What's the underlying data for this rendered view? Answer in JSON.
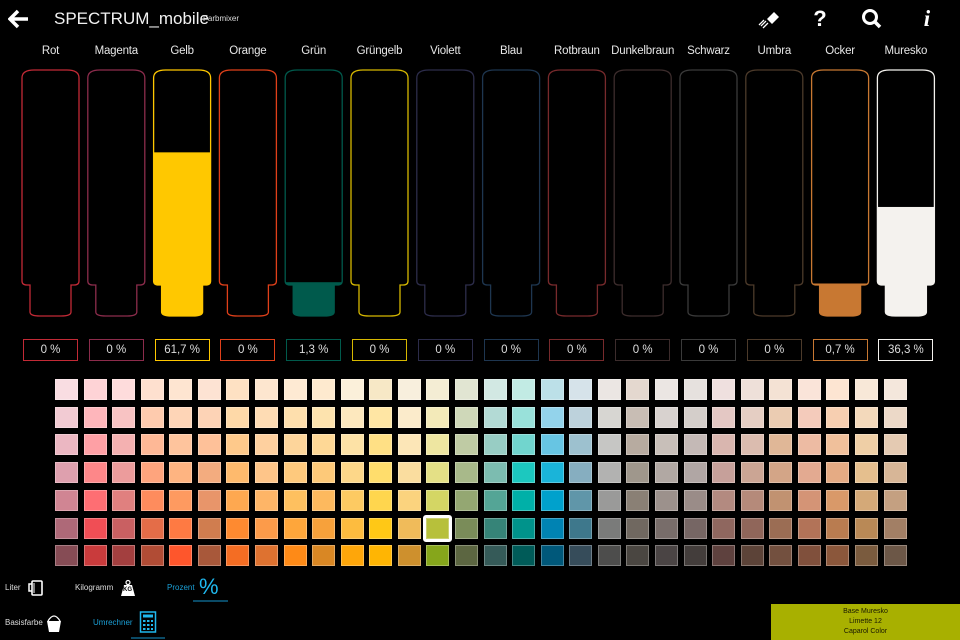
{
  "header": {
    "title": "SPECTRUM_mobile",
    "subtitle": "Farbmixer",
    "icons": [
      "back-arrow-icon",
      "eraser-icon",
      "help-icon",
      "search-icon",
      "info-icon"
    ]
  },
  "tubes": [
    {
      "name": "Rot",
      "percent": 0,
      "value": "0 %",
      "color": "#c32a36"
    },
    {
      "name": "Magenta",
      "percent": 0,
      "value": "0 %",
      "color": "#8c2c4c"
    },
    {
      "name": "Gelb",
      "percent": 61.7,
      "value": "61,7 %",
      "color": "#ffc800"
    },
    {
      "name": "Orange",
      "percent": 0,
      "value": "0 %",
      "color": "#e0401a"
    },
    {
      "name": "Grün",
      "percent": 1.3,
      "value": "1,3 %",
      "color": "#005a4c"
    },
    {
      "name": "Grüngelb",
      "percent": 0,
      "value": "0 %",
      "color": "#d6b800"
    },
    {
      "name": "Violett",
      "percent": 0,
      "value": "0 %",
      "color": "#2c2c4a"
    },
    {
      "name": "Blau",
      "percent": 0,
      "value": "0 %",
      "color": "#1e3650"
    },
    {
      "name": "Rotbraun",
      "percent": 0,
      "value": "0 %",
      "color": "#782a2c"
    },
    {
      "name": "Dunkelbraun",
      "percent": 0,
      "value": "0 %",
      "color": "#3c2c2c"
    },
    {
      "name": "Schwarz",
      "percent": 0,
      "value": "0 %",
      "color": "#3a3a3a"
    },
    {
      "name": "Umbra",
      "percent": 0,
      "value": "0 %",
      "color": "#4c3a2a"
    },
    {
      "name": "Ocker",
      "percent": 0.7,
      "value": "0,7 %",
      "color": "#c87832"
    },
    {
      "name": "Muresko",
      "percent": 36.3,
      "value": "36,3 %",
      "color": "#f4f2ee"
    }
  ],
  "swatches": {
    "selected": {
      "row": 5,
      "col": 13
    },
    "rows": [
      [
        "#f9dde2",
        "#fed3d6",
        "#fedcdc",
        "#fee0cf",
        "#fee5d1",
        "#fde3d3",
        "#fee1c3",
        "#fde6cf",
        "#feead3",
        "#feeacf",
        "#fbf0da",
        "#f7e8c6",
        "#f8efdd",
        "#f4edd4",
        "#e1e5d2",
        "#d2e8e3",
        "#c2ebe4",
        "#bce0e8",
        "#d6e3ea",
        "#ebe6e3",
        "#e4d8cf",
        "#ebe6e3",
        "#e6e1de",
        "#efe0df",
        "#eee0d9",
        "#f4e2d4",
        "#fae4d9",
        "#fde5d2",
        "#f8e8d8",
        "#f4e7dc"
      ],
      [
        "#f2cbd3",
        "#feb6bb",
        "#f8c3c3",
        "#fecbae",
        "#fed5b7",
        "#fdd3b6",
        "#fed9a8",
        "#fedcb4",
        "#fedfad",
        "#fde3ae",
        "#fde8be",
        "#ffe6a4",
        "#fbebcb",
        "#f3eab9",
        "#cfd8b9",
        "#b3dad5",
        "#99e1da",
        "#93d3eb",
        "#bdd2dc",
        "#d7d6d2",
        "#c8bdb4",
        "#d8d2cf",
        "#d4ceca",
        "#e4c8c4",
        "#e5cec3",
        "#ebccb2",
        "#f4cbbb",
        "#f7cfb1",
        "#f3d9bb",
        "#ecd9c8"
      ],
      [
        "#ebb7c2",
        "#fea0a5",
        "#f4b1b1",
        "#feb896",
        "#fec49d",
        "#fec199",
        "#fec98b",
        "#fed09f",
        "#fdd59b",
        "#fed896",
        "#fde2a6",
        "#ffe085",
        "#fce6b7",
        "#eee6a1",
        "#bfcba4",
        "#98cdc4",
        "#71d5ce",
        "#67c5e3",
        "#9dc1cf",
        "#c6c6c4",
        "#b7aba0",
        "#c8bfb9",
        "#c4b9b6",
        "#d9b6af",
        "#dbbcaf",
        "#e0b797",
        "#edbba3",
        "#f0c09b",
        "#efcfa6",
        "#e4cab2"
      ],
      [
        "#dea0ae",
        "#fd8789",
        "#ec9c9c",
        "#fea47d",
        "#feb481",
        "#f3ac7f",
        "#feba6d",
        "#fec589",
        "#fec97d",
        "#fdc979",
        "#fdd789",
        "#ffdd6c",
        "#fadd9f",
        "#e4e086",
        "#a8b98a",
        "#7cbcb0",
        "#1cc8bf",
        "#1ab4d9",
        "#86aec0",
        "#b2b2b1",
        "#9f978c",
        "#b1a8a3",
        "#b0a6a4",
        "#c6a09a",
        "#cba594",
        "#d3a587",
        "#e3aa91",
        "#e5ab84",
        "#e5bf8e",
        "#d7b697"
      ],
      [
        "#d08593",
        "#fe6e73",
        "#e0807f",
        "#fe8c5d",
        "#fe9a60",
        "#e8956a",
        "#fea850",
        "#feb567",
        "#fec05f",
        "#fdb95e",
        "#fdca62",
        "#ffd64e",
        "#fbd37e",
        "#d4d664",
        "#94a772",
        "#54a596",
        "#00b0a8",
        "#00a1cc",
        "#6096a9",
        "#9a9a99",
        "#8a8075",
        "#9c918c",
        "#9a8c88",
        "#b38a80",
        "#b58a7a",
        "#c19271",
        "#d49476",
        "#d99969",
        "#d4a978",
        "#c4a081"
      ],
      [
        "#ae6978",
        "#f04e55",
        "#c96062",
        "#e46d48",
        "#fe7a43",
        "#d07d4f",
        "#fe8a30",
        "#fc9b4a",
        "#fea63b",
        "#f7a13b",
        "#fdbc3f",
        "#ffc816",
        "#f0bb5a",
        "#b7c03b",
        "#7a8c59",
        "#368478",
        "#00938b",
        "#0083b3",
        "#3e788c",
        "#7a7b7a",
        "#706860",
        "#786d6a",
        "#766664",
        "#8f675f",
        "#90665a",
        "#9b6d54",
        "#b27358",
        "#b97c50",
        "#b98956",
        "#a27f65"
      ],
      [
        "#864c55",
        "#c93b3c",
        "#a33f3f",
        "#b14c35",
        "#fe562c",
        "#a8583a",
        "#f46d23",
        "#de7230",
        "#fe8a17",
        "#d98724",
        "#fea60a",
        "#ffb503",
        "#ce902d",
        "#86a61b",
        "#5c6641",
        "#355a58",
        "#005b58",
        "#00587a",
        "#364c5a",
        "#4d4d4c",
        "#4a4641",
        "#4a4444",
        "#433d3b",
        "#5e413e",
        "#5c4338",
        "#73503f",
        "#80503c",
        "#8b573b",
        "#7a5b3e",
        "#6c5747"
      ]
    ]
  },
  "units": {
    "liter": "Liter",
    "kilogramm": "Kilogramm",
    "prozent": "Prozent",
    "kg_badge": "KG",
    "percent_symbol": "%",
    "active": "Prozent"
  },
  "modes": {
    "basisfarbe": "Basisfarbe",
    "umrechner": "Umrechner",
    "active": "Umrechner"
  },
  "result": {
    "line1": "Base Muresko",
    "line2": "Limette 12",
    "line3": "Caparol Color",
    "color": "#a8b000"
  }
}
